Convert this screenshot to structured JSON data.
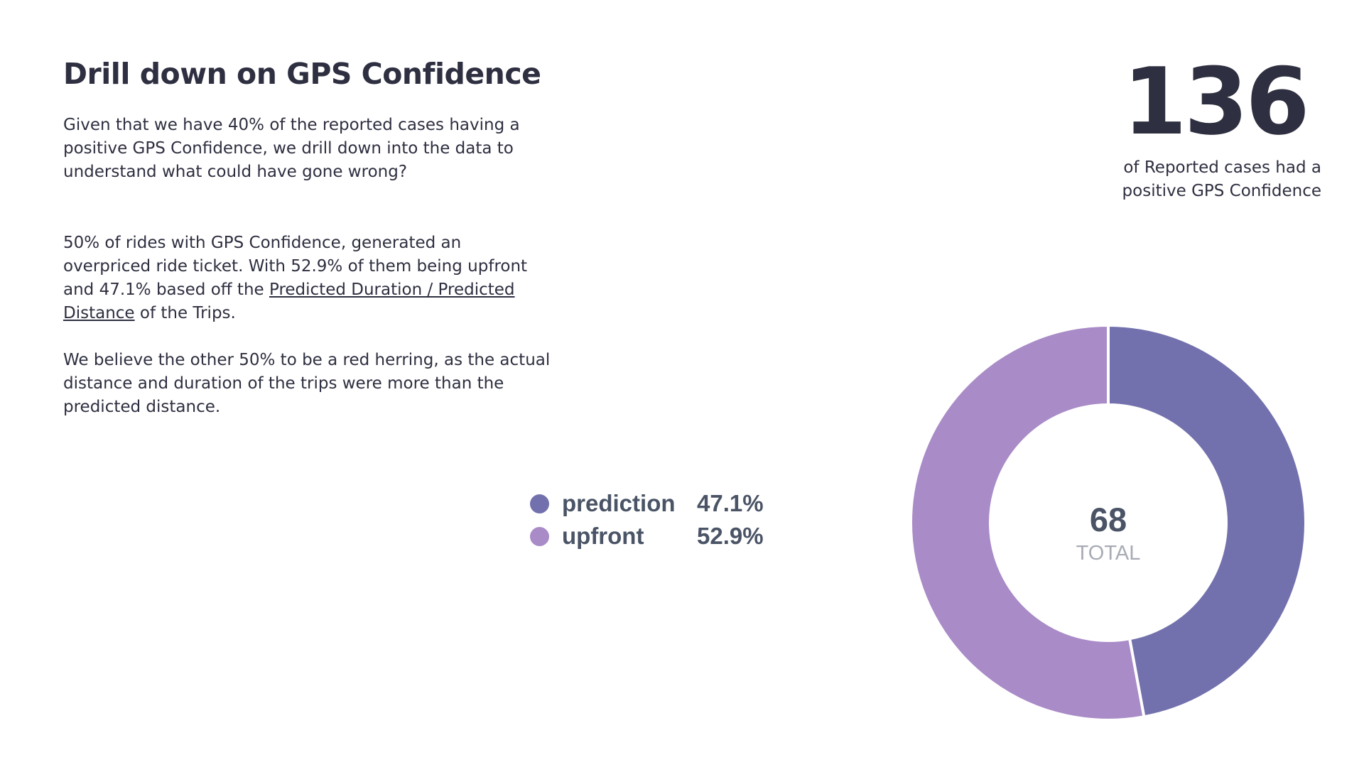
{
  "slide": {
    "title": "Drill down on GPS Confidence",
    "paragraph1": "Given that we have 40% of the reported cases having a positive GPS Confidence, we drill down into the data to understand what could have gone wrong?",
    "paragraph2_before": "50% of rides with GPS Confidence, generated an overpriced ride ticket. With 52.9% of them being upfront and 47.1% based off the ",
    "paragraph2_link": "Predicted Duration / Predicted Distance",
    "paragraph2_after": " of the Trips.",
    "paragraph3": "We believe the other 50% to be a red herring, as the actual distance and duration of the trips were more than the predicted distance."
  },
  "kpi": {
    "value": "136",
    "caption_line1": "of Reported cases had a",
    "caption_line2": "positive GPS Confidence"
  },
  "chart_data": {
    "type": "pie",
    "style": "donut",
    "categories": [
      "prediction",
      "upfront"
    ],
    "values": [
      47.1,
      52.9
    ],
    "value_labels": [
      "47.1%",
      "52.9%"
    ],
    "colors": [
      "#7371ad",
      "#a98bc7"
    ],
    "center_value": "68",
    "center_label": "TOTAL",
    "legend_placement": "left"
  }
}
